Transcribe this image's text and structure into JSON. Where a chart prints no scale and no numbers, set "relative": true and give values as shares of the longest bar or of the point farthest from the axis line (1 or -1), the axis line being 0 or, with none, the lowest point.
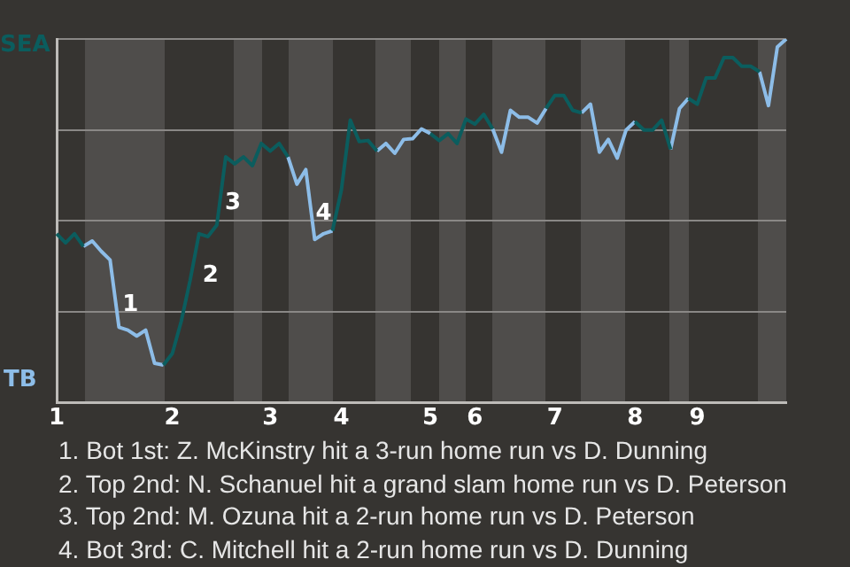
{
  "chart_data": {
    "type": "line",
    "relative": true,
    "categories": [
      "1",
      null,
      null,
      null,
      null,
      null,
      null,
      null,
      null,
      null,
      null,
      null,
      null,
      "2",
      null,
      null,
      null,
      null,
      null,
      null,
      null,
      null,
      null,
      null,
      "3",
      null,
      null,
      null,
      null,
      null,
      null,
      null,
      "4",
      null,
      null,
      null,
      null,
      null,
      null,
      null,
      null,
      null,
      "5",
      null,
      null,
      null,
      null,
      "6",
      null,
      null,
      null,
      null,
      null,
      null,
      null,
      null,
      "7",
      null,
      null,
      null,
      null,
      null,
      null,
      null,
      null,
      "8",
      null,
      null,
      null,
      null,
      null,
      null,
      "9",
      null,
      null,
      null,
      null,
      null,
      null,
      null,
      null,
      null,
      null
    ],
    "series": [
      {
        "color": "#0b5d5e",
        "values": [
          0.465,
          0.44,
          0.465,
          0.43,
          null,
          null,
          null,
          null,
          null,
          null,
          null,
          null,
          0.104,
          0.136,
          0.224,
          0.337,
          0.465,
          0.457,
          0.489,
          0.676,
          0.657,
          0.676,
          0.652,
          0.713,
          0.692,
          0.713,
          0.676,
          null,
          null,
          null,
          null,
          0.473,
          0.585,
          0.777,
          0.718,
          0.721,
          0.692,
          null,
          null,
          null,
          null,
          null,
          0.74,
          0.721,
          0.74,
          0.713,
          0.78,
          0.766,
          0.793,
          0.753,
          null,
          null,
          null,
          null,
          null,
          0.809,
          0.845,
          0.845,
          0.804,
          0.797,
          null,
          null,
          null,
          null,
          null,
          0.773,
          0.75,
          0.75,
          0.777,
          0.697,
          null,
          0.837,
          0.821,
          0.893,
          0.893,
          0.949,
          0.949,
          0.925,
          0.925,
          0.91,
          null,
          null,
          null
        ]
      },
      {
        "color": "#8dbde8",
        "values": [
          null,
          null,
          null,
          0.43,
          0.445,
          0.417,
          0.393,
          0.208,
          0.2,
          0.184,
          0.2,
          0.109,
          0.104,
          null,
          null,
          null,
          null,
          null,
          null,
          null,
          null,
          null,
          null,
          null,
          null,
          null,
          0.676,
          0.601,
          0.641,
          0.449,
          0.465,
          0.473,
          null,
          null,
          null,
          null,
          0.692,
          0.713,
          0.686,
          0.724,
          0.726,
          0.753,
          0.74,
          null,
          null,
          null,
          null,
          null,
          null,
          0.753,
          0.689,
          0.804,
          0.785,
          0.785,
          0.769,
          0.809,
          null,
          null,
          null,
          0.797,
          0.821,
          0.689,
          0.724,
          0.673,
          0.75,
          0.773,
          null,
          null,
          null,
          0.697,
          0.809,
          0.837,
          null,
          null,
          null,
          null,
          null,
          null,
          null,
          0.91,
          0.817,
          0.978,
          1
        ]
      }
    ],
    "grid": "y",
    "legend": false,
    "marker": "none",
    "line_style": "solid",
    "annotations": [
      "SEA",
      "TB",
      "1",
      "2",
      "3",
      "4",
      "1. Bot 1st: Z. McKinstry hit a 3-run home run vs D. Dunning",
      "2. Top 2nd: N. Schanuel hit a grand slam home run vs D. Peterson",
      "3. Top 2nd: M. Ozuna hit a 2-run home run vs D. Peterson",
      "4. Bot 3rd: C. Mitchell hit a 2-run home run vs D. Dunning"
    ]
  }
}
